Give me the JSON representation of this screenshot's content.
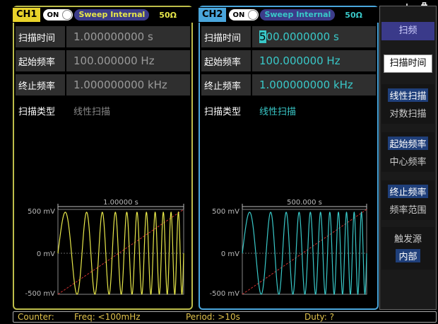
{
  "status_icons": {
    "usb": "usb-icon",
    "storage": "usb-drive-icon"
  },
  "ch1": {
    "label": "CH1",
    "on": "ON",
    "mode": "Sweep",
    "source": "Internal",
    "impedance": "50Ω",
    "fields": [
      {
        "label": "扫描时间",
        "value": "1.000000000 s"
      },
      {
        "label": "起始频率",
        "value": "100.000000 Hz"
      },
      {
        "label": "终止频率",
        "value": "1.000000000 kHz"
      }
    ],
    "type_label": "扫描类型",
    "type_value": "线性扫描",
    "preview": {
      "time": "1.00000 s",
      "ymax": "500 mV",
      "ymid": "0 mV",
      "ymin": "-500 mV"
    }
  },
  "ch2": {
    "label": "CH2",
    "on": "ON",
    "mode": "Sweep",
    "source": "Internal",
    "impedance": "50Ω",
    "fields": [
      {
        "label": "扫描时间",
        "value": "500.0000000 s"
      },
      {
        "label": "起始频率",
        "value": "100.000000 Hz"
      },
      {
        "label": "终止频率",
        "value": "1.000000000 kHz"
      }
    ],
    "type_label": "扫描类型",
    "type_value": "线性扫描",
    "preview": {
      "time": "500.000 s",
      "ymax": "500 mV",
      "ymid": "0 mV",
      "ymin": "-500 mV"
    }
  },
  "softkeys": {
    "title": "扫频",
    "sweep_time": "扫描时间",
    "linear": "线性扫描",
    "log": "对数扫描",
    "start_freq": "起始频率",
    "center_freq": "中心频率",
    "stop_freq": "终止频率",
    "span": "频率范围",
    "trigger_label": "触发源",
    "trigger_value": "内部"
  },
  "counter": {
    "label": "Counter:",
    "freq": "Freq: <100mHz",
    "period": "Period: >10s",
    "duty": "Duty: ?"
  },
  "colors": {
    "ch1": "#e8e84a",
    "ch2": "#39c8c8",
    "ch2_frame": "#4aa6dc",
    "ramp": "#d03030",
    "menu_active": "#1f3f7a"
  }
}
